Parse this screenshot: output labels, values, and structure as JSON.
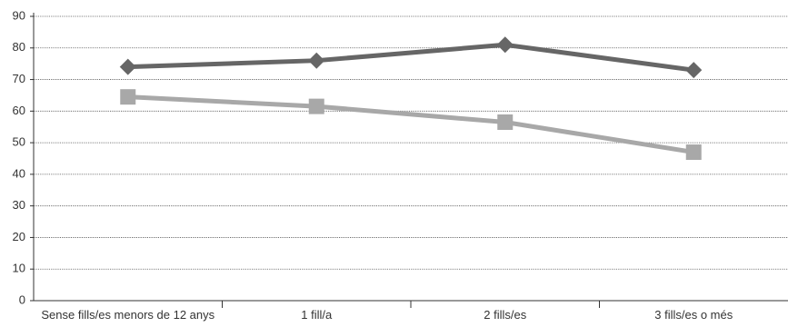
{
  "chart_data": {
    "type": "line",
    "title": "",
    "xlabel": "",
    "ylabel": "",
    "ylim": [
      0,
      90
    ],
    "yticks": [
      0,
      10,
      20,
      30,
      40,
      50,
      60,
      70,
      80,
      90
    ],
    "categories": [
      "Sense fills/es menors de 12 anys",
      "1 fill/a",
      "2 fills/es",
      "3 fills/es o més"
    ],
    "grid": true,
    "legend": "none",
    "series": [
      {
        "marker": "diamond",
        "color": "#666666",
        "values": [
          74,
          76,
          81,
          73
        ]
      },
      {
        "marker": "square",
        "color": "#a8a8a8",
        "values": [
          64.5,
          61.5,
          56.5,
          47
        ]
      }
    ]
  }
}
